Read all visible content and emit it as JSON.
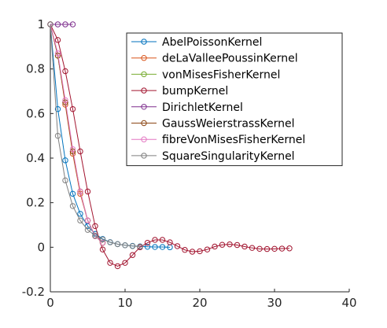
{
  "chart_data": {
    "type": "line",
    "title": "",
    "xlabel": "",
    "ylabel": "",
    "xlim": [
      0,
      40
    ],
    "ylim": [
      -0.2,
      1
    ],
    "xticks": [
      "0",
      "10",
      "20",
      "30",
      "40"
    ],
    "yticks": [
      "-0.2",
      "0",
      "0.2",
      "0.4",
      "0.6",
      "0.8",
      "1"
    ],
    "grid": false,
    "legend_position": "top-right",
    "series": [
      {
        "name": "AbelPoissonKernel",
        "color": "#0072BD",
        "x": [
          0,
          1,
          2,
          3,
          4,
          5,
          6,
          7,
          8,
          9,
          10,
          11,
          12,
          13,
          14,
          15,
          16
        ],
        "y": [
          1,
          0.62,
          0.39,
          0.24,
          0.15,
          0.095,
          0.06,
          0.037,
          0.023,
          0.014,
          0.009,
          0.006,
          0.004,
          0.002,
          0.001,
          0.001,
          0.0
        ]
      },
      {
        "name": "deLaValleePoussinKernel",
        "color": "#D95319",
        "x": [
          0,
          1,
          2,
          3,
          4,
          5,
          6,
          7
        ],
        "y": [
          1,
          0.86,
          0.64,
          0.42,
          0.24,
          0.12,
          0.05,
          0.02
        ]
      },
      {
        "name": "vonMisesFisherKernel",
        "color": "#77AC30",
        "x": [
          0,
          1,
          2,
          3,
          4,
          5,
          6,
          7
        ],
        "y": [
          1,
          0.86,
          0.65,
          0.43,
          0.25,
          0.12,
          0.05,
          0.02
        ]
      },
      {
        "name": "bumpKernel",
        "color": "#A2142F",
        "x": [
          0,
          1,
          2,
          3,
          4,
          5,
          6,
          7,
          8,
          9,
          10,
          11,
          12,
          13,
          14,
          15,
          16,
          17,
          18,
          19,
          20,
          21,
          22,
          23,
          24,
          25,
          26,
          27,
          28,
          29,
          30,
          31,
          32
        ],
        "y": [
          1,
          0.93,
          0.79,
          0.62,
          0.43,
          0.25,
          0.095,
          -0.01,
          -0.07,
          -0.085,
          -0.07,
          -0.035,
          0.0,
          0.02,
          0.033,
          0.033,
          0.022,
          0.005,
          -0.012,
          -0.02,
          -0.018,
          -0.01,
          0.003,
          0.011,
          0.013,
          0.01,
          0.003,
          -0.003,
          -0.007,
          -0.008,
          -0.007,
          -0.006,
          -0.005
        ]
      },
      {
        "name": "DirichletKernel",
        "color": "#7E2F8E",
        "x": [
          0,
          1,
          2,
          3
        ],
        "y": [
          1,
          1,
          1,
          1
        ]
      },
      {
        "name": "GaussWeierstrassKernel",
        "color": "#8B4513",
        "x": [
          0,
          1,
          2,
          3,
          4,
          5,
          6,
          7
        ],
        "y": [
          1,
          0.86,
          0.65,
          0.43,
          0.25,
          0.12,
          0.05,
          0.02
        ]
      },
      {
        "name": "fibreVonMisesFisherKernel",
        "color": "#E377C2",
        "x": [
          0,
          1,
          2,
          3,
          4,
          5,
          6,
          7
        ],
        "y": [
          1,
          0.87,
          0.66,
          0.44,
          0.25,
          0.12,
          0.05,
          0.02
        ]
      },
      {
        "name": "SquareSingularityKernel",
        "color": "#7F7F7F",
        "x": [
          0,
          1,
          2,
          3,
          4,
          5,
          6,
          7,
          8,
          9,
          10,
          11,
          12
        ],
        "y": [
          1,
          0.5,
          0.3,
          0.185,
          0.12,
          0.078,
          0.052,
          0.035,
          0.022,
          0.014,
          0.009,
          0.005,
          0.003
        ]
      }
    ]
  }
}
